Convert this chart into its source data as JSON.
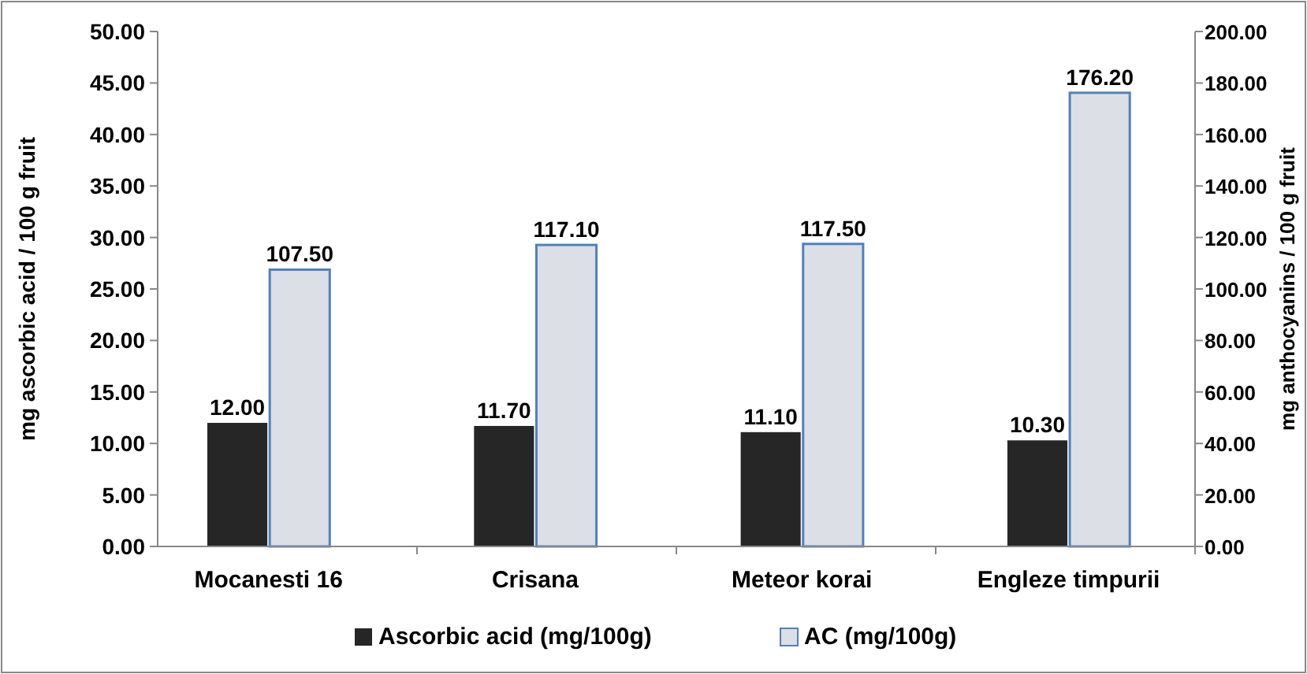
{
  "chart_data": {
    "type": "bar",
    "categories": [
      "Mocanesti 16",
      "Crisana",
      "Meteor korai",
      "Engleze timpurii"
    ],
    "ylabel": "mg ascorbic acid / 100 g fruit",
    "y2label": "mg anthocyanins / 100 g fruit",
    "ylim": [
      0,
      50
    ],
    "yticks": [
      {
        "value": 0,
        "label": "0.00"
      },
      {
        "value": 5,
        "label": "5.00"
      },
      {
        "value": 10,
        "label": "10.00"
      },
      {
        "value": 15,
        "label": "15.00"
      },
      {
        "value": 20,
        "label": "20.00"
      },
      {
        "value": 25,
        "label": "25.00"
      },
      {
        "value": 30,
        "label": "30.00"
      },
      {
        "value": 35,
        "label": "35.00"
      },
      {
        "value": 40,
        "label": "40.00"
      },
      {
        "value": 45,
        "label": "45.00"
      },
      {
        "value": 50,
        "label": "50.00"
      }
    ],
    "y2lim": [
      0,
      200
    ],
    "y2ticks": [
      {
        "value": 0,
        "label": "0.00"
      },
      {
        "value": 20,
        "label": "20.00"
      },
      {
        "value": 40,
        "label": "40.00"
      },
      {
        "value": 60,
        "label": "60.00"
      },
      {
        "value": 80,
        "label": "80.00"
      },
      {
        "value": 100,
        "label": "100.00"
      },
      {
        "value": 120,
        "label": "120.00"
      },
      {
        "value": 140,
        "label": "140.00"
      },
      {
        "value": 160,
        "label": "160.00"
      },
      {
        "value": 180,
        "label": "180.00"
      },
      {
        "value": 200,
        "label": "200.00"
      }
    ],
    "series": [
      {
        "name": "Ascorbic acid (mg/100g)",
        "color": "#262626",
        "values": [
          12.0,
          11.7,
          11.1,
          10.3
        ],
        "value_labels": [
          "12.00",
          "11.70",
          "11.10",
          "10.30"
        ]
      },
      {
        "name": "AC (mg/100g)",
        "color": "#dcdfe6",
        "axis": "y2",
        "values": [
          107.5,
          117.1,
          117.5,
          176.2
        ],
        "value_labels": [
          "107.50",
          "117.10",
          "117.50",
          "176.20"
        ]
      }
    ],
    "grid": false,
    "legend": "bottom"
  }
}
